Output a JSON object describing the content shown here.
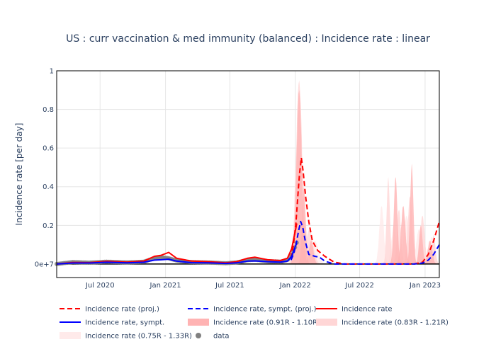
{
  "chart_data": {
    "type": "line",
    "title": "US : curr vaccination & med immunity (balanced) : Incidence rate : linear",
    "xlabel": "",
    "ylabel": "Incidence rate [per day]",
    "x_ticks": [
      "Jul 2020",
      "Jan 2021",
      "Jul 2021",
      "Jan 2022",
      "Jul 2022",
      "Jan 2023"
    ],
    "x_tick_dates": [
      "2020-07-01",
      "2021-01-01",
      "2021-07-01",
      "2022-01-01",
      "2022-07-01",
      "2023-01-01"
    ],
    "xlim": [
      "2020-03-01",
      "2023-02-10"
    ],
    "y_ticks": [
      "0e+7",
      "0.2",
      "0.4",
      "0.6",
      "0.8",
      "1"
    ],
    "y_tick_values": [
      0,
      0.2,
      0.4,
      0.6,
      0.8,
      1.0
    ],
    "ylim": [
      -0.07,
      1.0
    ],
    "grid": true,
    "legend_position": "bottom",
    "colors": {
      "proj": "#ff0000",
      "sympt_proj": "#0000ff",
      "rate": "#ff0000",
      "sympt": "#0000ff",
      "band_91": "#ffb3b3",
      "band_83": "#ffd6d6",
      "band_75": "#ffeaea",
      "data": "#808080",
      "zero_line": "#000000"
    },
    "series": [
      {
        "name": "Incidence rate (proj.)",
        "style": "dash",
        "color": "#ff0000",
        "points": [
          [
            "2021-12-20",
            0.03
          ],
          [
            "2021-12-27",
            0.1
          ],
          [
            "2022-01-03",
            0.22
          ],
          [
            "2022-01-08",
            0.35
          ],
          [
            "2022-01-13",
            0.47
          ],
          [
            "2022-01-18",
            0.55
          ],
          [
            "2022-01-23",
            0.48
          ],
          [
            "2022-01-30",
            0.35
          ],
          [
            "2022-02-08",
            0.22
          ],
          [
            "2022-02-18",
            0.12
          ],
          [
            "2022-03-05",
            0.07
          ],
          [
            "2022-03-25",
            0.04
          ],
          [
            "2022-04-20",
            0.01
          ],
          [
            "2022-05-20",
            0.0
          ],
          [
            "2022-12-01",
            0.0
          ],
          [
            "2022-12-25",
            0.01
          ],
          [
            "2023-01-10",
            0.05
          ],
          [
            "2023-01-25",
            0.12
          ],
          [
            "2023-02-10",
            0.22
          ]
        ]
      },
      {
        "name": "Incidence rate, sympt. (proj.)",
        "style": "dash",
        "color": "#0000ff",
        "points": [
          [
            "2021-12-20",
            0.02
          ],
          [
            "2021-12-27",
            0.05
          ],
          [
            "2022-01-03",
            0.1
          ],
          [
            "2022-01-10",
            0.17
          ],
          [
            "2022-01-16",
            0.22
          ],
          [
            "2022-01-22",
            0.19
          ],
          [
            "2022-01-30",
            0.11
          ],
          [
            "2022-02-08",
            0.05
          ],
          [
            "2022-02-25",
            0.04
          ],
          [
            "2022-03-10",
            0.035
          ],
          [
            "2022-03-25",
            0.015
          ],
          [
            "2022-04-20",
            0.0
          ],
          [
            "2022-12-01",
            0.0
          ],
          [
            "2022-12-25",
            0.005
          ],
          [
            "2023-01-10",
            0.02
          ],
          [
            "2023-01-25",
            0.05
          ],
          [
            "2023-02-10",
            0.1
          ]
        ]
      },
      {
        "name": "Incidence rate",
        "style": "solid",
        "color": "#ff0000",
        "points": [
          [
            "2020-03-01",
            0.0
          ],
          [
            "2020-04-15",
            0.008
          ],
          [
            "2020-06-01",
            0.007
          ],
          [
            "2020-07-20",
            0.014
          ],
          [
            "2020-09-15",
            0.01
          ],
          [
            "2020-11-01",
            0.015
          ],
          [
            "2020-12-01",
            0.04
          ],
          [
            "2020-12-20",
            0.045
          ],
          [
            "2021-01-10",
            0.06
          ],
          [
            "2021-02-01",
            0.03
          ],
          [
            "2021-03-15",
            0.015
          ],
          [
            "2021-05-01",
            0.012
          ],
          [
            "2021-06-20",
            0.006
          ],
          [
            "2021-07-20",
            0.012
          ],
          [
            "2021-08-20",
            0.03
          ],
          [
            "2021-09-10",
            0.035
          ],
          [
            "2021-10-15",
            0.022
          ],
          [
            "2021-11-20",
            0.018
          ],
          [
            "2021-12-10",
            0.03
          ],
          [
            "2021-12-22",
            0.08
          ],
          [
            "2022-01-01",
            0.17
          ],
          [
            "2022-01-05",
            0.21
          ]
        ]
      },
      {
        "name": "Incidence rate, sympt.",
        "style": "solid",
        "color": "#0000ff",
        "points": [
          [
            "2020-03-01",
            0.0
          ],
          [
            "2020-04-15",
            0.005
          ],
          [
            "2020-06-01",
            0.005
          ],
          [
            "2020-07-20",
            0.009
          ],
          [
            "2020-09-15",
            0.006
          ],
          [
            "2020-11-01",
            0.009
          ],
          [
            "2020-12-01",
            0.02
          ],
          [
            "2020-12-20",
            0.022
          ],
          [
            "2021-01-10",
            0.025
          ],
          [
            "2021-02-01",
            0.015
          ],
          [
            "2021-03-15",
            0.007
          ],
          [
            "2021-05-01",
            0.006
          ],
          [
            "2021-06-20",
            0.003
          ],
          [
            "2021-07-20",
            0.006
          ],
          [
            "2021-08-20",
            0.015
          ],
          [
            "2021-09-10",
            0.016
          ],
          [
            "2021-10-15",
            0.012
          ],
          [
            "2021-11-20",
            0.01
          ],
          [
            "2021-12-10",
            0.015
          ],
          [
            "2021-12-22",
            0.04
          ],
          [
            "2022-01-01",
            0.09
          ],
          [
            "2022-01-05",
            0.11
          ]
        ]
      },
      {
        "name": "Incidence rate (0.91R - 1.10R)",
        "style": "band",
        "color": "#ffb3b3",
        "peaks": [
          [
            "2022-01-12",
            0.9,
            30
          ],
          [
            "2022-01-25",
            0.4,
            20
          ],
          [
            "2022-02-15",
            0.12,
            25
          ],
          [
            "2022-10-10",
            0.45,
            20
          ],
          [
            "2022-11-01",
            0.3,
            25
          ],
          [
            "2022-11-25",
            0.52,
            18
          ],
          [
            "2022-12-20",
            0.2,
            20
          ],
          [
            "2023-01-15",
            0.12,
            25
          ]
        ]
      },
      {
        "name": "Incidence rate (0.83R - 1.21R)",
        "style": "band",
        "color": "#ffd6d6",
        "peaks": [
          [
            "2022-01-12",
            0.95,
            35
          ],
          [
            "2022-02-10",
            0.18,
            40
          ],
          [
            "2022-09-20",
            0.45,
            18
          ],
          [
            "2022-10-20",
            0.28,
            22
          ],
          [
            "2022-11-20",
            0.35,
            25
          ],
          [
            "2022-12-25",
            0.25,
            25
          ],
          [
            "2023-01-25",
            0.15,
            20
          ]
        ]
      },
      {
        "name": "Incidence rate (0.75R - 1.33R)",
        "style": "band",
        "color": "#ffeaea",
        "peaks": [
          [
            "2022-01-15",
            0.5,
            50
          ],
          [
            "2022-02-25",
            0.12,
            40
          ],
          [
            "2022-09-01",
            0.3,
            25
          ],
          [
            "2022-10-05",
            0.2,
            25
          ],
          [
            "2022-11-10",
            0.25,
            30
          ],
          [
            "2022-12-15",
            0.18,
            30
          ],
          [
            "2023-01-20",
            0.14,
            30
          ]
        ]
      },
      {
        "name": "data",
        "style": "markers",
        "color": "#808080",
        "points": [
          [
            "2020-03-01",
            0.0
          ],
          [
            "2020-04-15",
            0.01
          ],
          [
            "2020-06-01",
            0.007
          ],
          [
            "2020-07-20",
            0.012
          ],
          [
            "2020-09-15",
            0.008
          ],
          [
            "2020-11-01",
            0.012
          ],
          [
            "2020-12-01",
            0.03
          ],
          [
            "2020-12-20",
            0.035
          ],
          [
            "2021-01-10",
            0.03
          ],
          [
            "2021-02-01",
            0.018
          ],
          [
            "2021-03-15",
            0.01
          ],
          [
            "2021-05-01",
            0.008
          ],
          [
            "2021-06-20",
            0.004
          ],
          [
            "2021-07-20",
            0.008
          ],
          [
            "2021-08-20",
            0.02
          ],
          [
            "2021-09-10",
            0.022
          ],
          [
            "2021-10-15",
            0.015
          ],
          [
            "2021-11-20",
            0.012
          ],
          [
            "2021-12-10",
            0.02
          ],
          [
            "2021-12-22",
            0.05
          ],
          [
            "2022-01-01",
            0.09
          ],
          [
            "2022-01-05",
            0.11
          ]
        ]
      }
    ]
  }
}
